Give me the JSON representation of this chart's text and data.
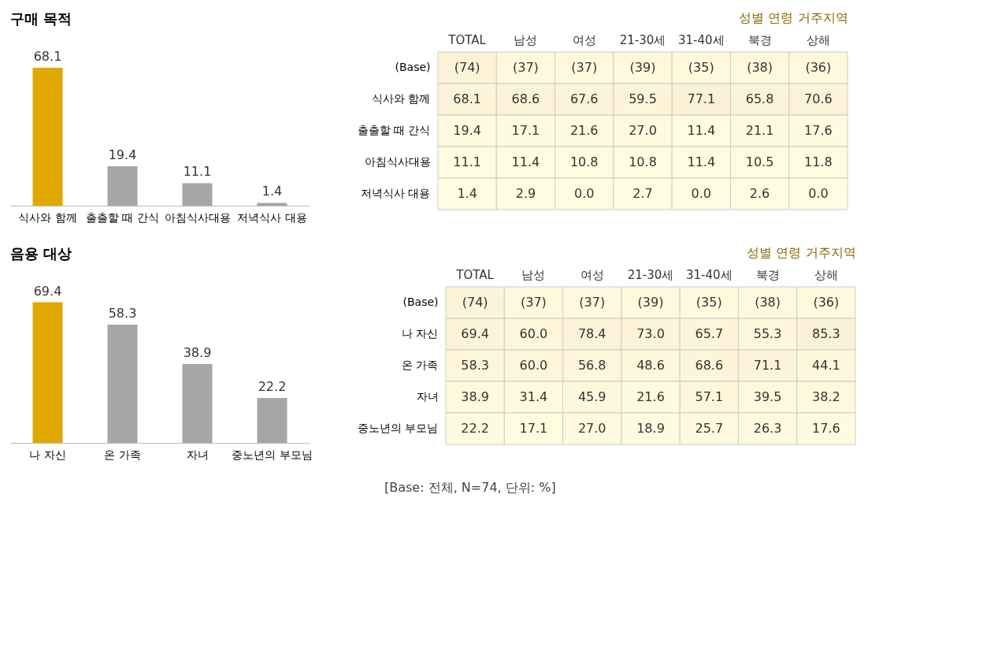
{
  "chart_data": [
    {
      "type": "bar",
      "title": "구매 목적",
      "categories": [
        "식사와 함께",
        "출출할 때 간식",
        "아침식사대용",
        "저녁식사 대용"
      ],
      "values": [
        68.1,
        19.4,
        11.1,
        1.4
      ],
      "colors": [
        "#e0a800",
        "#a6a6a6",
        "#a6a6a6",
        "#a6a6a6"
      ],
      "data_labels": true
    },
    {
      "type": "heatmap",
      "data_labels": true,
      "annotations": [
        "성별",
        "연령",
        "거주지역"
      ],
      "categories": [
        "TOTAL",
        "남성",
        "여성",
        "21-30세",
        "31-40세",
        "북경",
        "상해"
      ],
      "y_categories": [
        "(Base)",
        "식사와 함께",
        "출출할 때 간식",
        "아침식사대용",
        "저녁식사 대용"
      ],
      "cells": [
        [
          74,
          37,
          37,
          39,
          35,
          38,
          36
        ],
        [
          68.1,
          68.6,
          67.6,
          59.5,
          77.1,
          65.8,
          70.6
        ],
        [
          19.4,
          17.1,
          21.6,
          27.0,
          11.4,
          21.1,
          17.6
        ],
        [
          11.1,
          11.4,
          10.8,
          10.8,
          11.4,
          10.5,
          11.8
        ],
        [
          1.4,
          2.9,
          0.0,
          2.7,
          0.0,
          2.6,
          0.0
        ]
      ],
      "cell_labels": [
        [
          "(74)",
          "(37)",
          "(37)",
          "(39)",
          "(35)",
          "(38)",
          "(36)"
        ],
        [
          "68.1",
          "68.6",
          "67.6",
          "59.5",
          "77.1",
          "65.8",
          "70.6"
        ],
        [
          "19.4",
          "17.1",
          "21.6",
          "27.0",
          "11.4",
          "21.1",
          "17.6"
        ],
        [
          "11.1",
          "11.4",
          "10.8",
          "10.8",
          "11.4",
          "10.5",
          "11.8"
        ],
        [
          "1.4",
          "2.9",
          "0.0",
          "2.7",
          "0.0",
          "2.6",
          "0.0"
        ]
      ]
    },
    {
      "type": "bar",
      "title": "음용 대상",
      "categories": [
        "나 자신",
        "온 가족",
        "자녀",
        "중노년의 부모님"
      ],
      "values": [
        69.4,
        58.3,
        38.9,
        22.2
      ],
      "colors": [
        "#e0a800",
        "#a6a6a6",
        "#a6a6a6",
        "#a6a6a6"
      ],
      "data_labels": true
    },
    {
      "type": "heatmap",
      "data_labels": true,
      "annotations": [
        "성별",
        "연령",
        "거주지역"
      ],
      "categories": [
        "TOTAL",
        "남성",
        "여성",
        "21-30세",
        "31-40세",
        "북경",
        "상해"
      ],
      "y_categories": [
        "(Base)",
        "나 자신",
        "온 가족",
        "자녀",
        "중노년의 부모님"
      ],
      "cells": [
        [
          74,
          37,
          37,
          39,
          35,
          38,
          36
        ],
        [
          69.4,
          60.0,
          78.4,
          73.0,
          65.7,
          55.3,
          85.3
        ],
        [
          58.3,
          60.0,
          56.8,
          48.6,
          68.6,
          71.1,
          44.1
        ],
        [
          38.9,
          31.4,
          45.9,
          21.6,
          57.1,
          39.5,
          38.2
        ],
        [
          22.2,
          17.1,
          27.0,
          18.9,
          25.7,
          26.3,
          17.6
        ]
      ],
      "cell_labels": [
        [
          "(74)",
          "(37)",
          "(37)",
          "(39)",
          "(35)",
          "(38)",
          "(36)"
        ],
        [
          "69.4",
          "60.0",
          "78.4",
          "73.0",
          "65.7",
          "55.3",
          "85.3"
        ],
        [
          "58.3",
          "60.0",
          "56.8",
          "48.6",
          "68.6",
          "71.1",
          "44.1"
        ],
        [
          "38.9",
          "31.4",
          "45.9",
          "21.6",
          "57.1",
          "39.5",
          "38.2"
        ],
        [
          "22.2",
          "17.1",
          "27.0",
          "18.9",
          "25.7",
          "26.3",
          "17.6"
        ]
      ]
    },
    {
      "type": "other",
      "annotations": [
        "[Base: 전체, N=74, 단위: %]"
      ]
    }
  ]
}
